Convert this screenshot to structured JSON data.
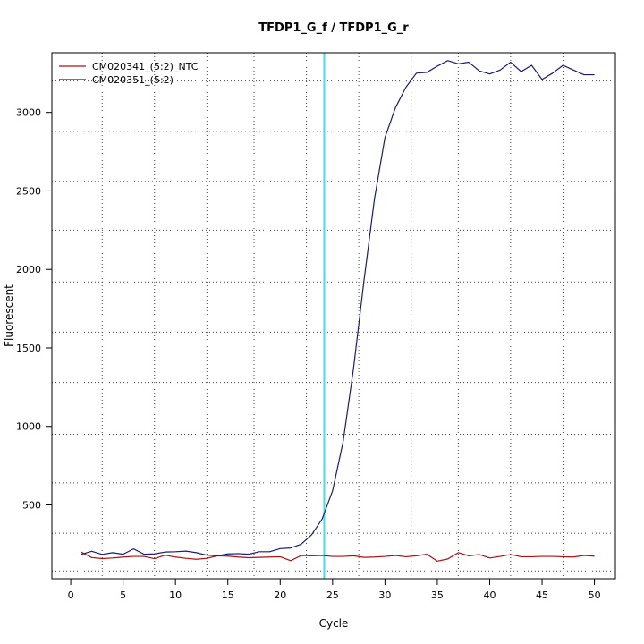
{
  "chart_data": {
    "type": "line",
    "title": "TFDP1_G_f / TFDP1_G_r",
    "xlabel": "Cycle",
    "ylabel": "Fluorescent",
    "xlim": [
      -1.8,
      52
    ],
    "ylim": [
      30,
      3380
    ],
    "x_ticks": [
      0,
      5,
      10,
      15,
      20,
      25,
      30,
      35,
      40,
      45,
      50
    ],
    "y_ticks": [
      500,
      1000,
      1500,
      2000,
      2500,
      3000
    ],
    "x_grid": [
      3,
      8,
      13,
      17.5,
      22.5,
      27.5,
      32.5,
      37,
      42,
      47
    ],
    "y_grid": [
      80,
      320,
      640,
      950,
      1280,
      1600,
      1920,
      2250,
      2560,
      2880,
      3200
    ],
    "threshold_x": 24.2,
    "threshold_color": "#33e6ee",
    "grid": true,
    "legend_position": "top-left",
    "x": [
      1,
      2,
      3,
      4,
      5,
      6,
      7,
      8,
      9,
      10,
      11,
      12,
      13,
      14,
      15,
      16,
      17,
      18,
      19,
      20,
      21,
      22,
      23,
      24,
      25,
      26,
      27,
      28,
      29,
      30,
      31,
      32,
      33,
      34,
      35,
      36,
      37,
      38,
      39,
      40,
      41,
      42,
      43,
      44,
      45,
      46,
      47,
      48,
      49,
      50
    ],
    "series": [
      {
        "name": "CM020341_(5:2)_NTC",
        "color": "#b01010",
        "values": [
          200,
          165,
          158,
          162,
          168,
          172,
          172,
          158,
          180,
          168,
          160,
          154,
          160,
          176,
          174,
          168,
          164,
          166,
          168,
          170,
          145,
          178,
          176,
          178,
          172,
          172,
          176,
          166,
          168,
          172,
          178,
          170,
          176,
          186,
          142,
          156,
          196,
          176,
          184,
          162,
          172,
          184,
          170,
          170,
          172,
          172,
          170,
          168,
          178,
          174
        ]
      },
      {
        "name": "CM020351_(5:2)",
        "color": "#1a1a80",
        "values": [
          185,
          205,
          185,
          196,
          186,
          220,
          186,
          188,
          200,
          202,
          206,
          196,
          180,
          176,
          188,
          190,
          186,
          202,
          202,
          222,
          226,
          250,
          310,
          410,
          590,
          900,
          1370,
          1930,
          2450,
          2840,
          3030,
          3160,
          3250,
          3255,
          3295,
          3330,
          3310,
          3320,
          3265,
          3245,
          3270,
          3320,
          3260,
          3300,
          3210,
          3250,
          3300,
          3270,
          3240,
          3240
        ]
      }
    ]
  }
}
